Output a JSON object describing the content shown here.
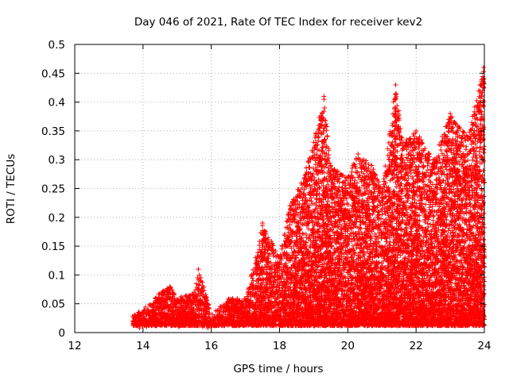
{
  "chart_data": {
    "type": "scatter",
    "title": "Day 046 of 2021, Rate Of TEC Index for receiver kev2",
    "xlabel": "GPS time / hours",
    "ylabel": "ROTI / TECUs",
    "xlim": [
      12,
      24
    ],
    "ylim": [
      0,
      0.5
    ],
    "xticks": [
      "12",
      "14",
      "16",
      "18",
      "20",
      "22",
      "24"
    ],
    "yticks": [
      "0",
      "0.05",
      "0.1",
      "0.15",
      "0.2",
      "0.25",
      "0.3",
      "0.35",
      "0.4",
      "0.45",
      "0.5"
    ],
    "grid": true,
    "marker": "+",
    "color": "#ff0000",
    "series": [
      {
        "name": "ROTI",
        "envelope": [
          {
            "x": 13.7,
            "ymax": 0.03
          },
          {
            "x": 14.0,
            "ymax": 0.04
          },
          {
            "x": 14.5,
            "ymax": 0.07
          },
          {
            "x": 14.8,
            "ymax": 0.08
          },
          {
            "x": 15.0,
            "ymax": 0.06
          },
          {
            "x": 15.5,
            "ymax": 0.07
          },
          {
            "x": 15.65,
            "ymax": 0.11
          },
          {
            "x": 16.0,
            "ymax": 0.03
          },
          {
            "x": 16.5,
            "ymax": 0.06
          },
          {
            "x": 17.0,
            "ymax": 0.06
          },
          {
            "x": 17.3,
            "ymax": 0.13
          },
          {
            "x": 17.5,
            "ymax": 0.19
          },
          {
            "x": 18.0,
            "ymax": 0.13
          },
          {
            "x": 18.3,
            "ymax": 0.22
          },
          {
            "x": 18.7,
            "ymax": 0.27
          },
          {
            "x": 19.0,
            "ymax": 0.33
          },
          {
            "x": 19.3,
            "ymax": 0.41
          },
          {
            "x": 19.5,
            "ymax": 0.29
          },
          {
            "x": 20.0,
            "ymax": 0.27
          },
          {
            "x": 20.3,
            "ymax": 0.31
          },
          {
            "x": 20.7,
            "ymax": 0.29
          },
          {
            "x": 21.0,
            "ymax": 0.25
          },
          {
            "x": 21.4,
            "ymax": 0.43
          },
          {
            "x": 21.6,
            "ymax": 0.33
          },
          {
            "x": 22.0,
            "ymax": 0.35
          },
          {
            "x": 22.5,
            "ymax": 0.3
          },
          {
            "x": 23.0,
            "ymax": 0.38
          },
          {
            "x": 23.5,
            "ymax": 0.34
          },
          {
            "x": 24.0,
            "ymax": 0.46
          }
        ],
        "values": [
          [
            13.72,
            0.012
          ],
          [
            13.75,
            0.025
          ],
          [
            13.8,
            0.018
          ],
          [
            13.85,
            0.03
          ],
          [
            13.9,
            0.008
          ],
          [
            13.95,
            0.02
          ],
          [
            14.0,
            0.035
          ],
          [
            14.05,
            0.015
          ],
          [
            14.1,
            0.01
          ],
          [
            14.15,
            0.04
          ],
          [
            14.2,
            0.022
          ],
          [
            14.25,
            0.012
          ],
          [
            14.3,
            0.03
          ],
          [
            14.35,
            0.05
          ],
          [
            14.4,
            0.018
          ],
          [
            14.45,
            0.06
          ],
          [
            14.5,
            0.025
          ],
          [
            14.55,
            0.065
          ],
          [
            14.6,
            0.015
          ],
          [
            14.65,
            0.03
          ],
          [
            14.7,
            0.045
          ],
          [
            14.75,
            0.02
          ],
          [
            14.8,
            0.078
          ],
          [
            14.85,
            0.012
          ],
          [
            14.9,
            0.035
          ],
          [
            14.95,
            0.05
          ],
          [
            15.0,
            0.02
          ],
          [
            15.05,
            0.01
          ],
          [
            15.1,
            0.03
          ],
          [
            15.15,
            0.06
          ],
          [
            15.2,
            0.015
          ],
          [
            15.3,
            0.025
          ],
          [
            15.35,
            0.045
          ],
          [
            15.4,
            0.012
          ],
          [
            15.5,
            0.07
          ],
          [
            15.55,
            0.03
          ],
          [
            15.6,
            0.095
          ],
          [
            15.62,
            0.11
          ],
          [
            15.65,
            0.1
          ],
          [
            15.7,
            0.02
          ],
          [
            15.75,
            0.01
          ],
          [
            15.8,
            0.015
          ],
          [
            15.9,
            0.008
          ],
          [
            16.0,
            0.02
          ],
          [
            16.1,
            0.012
          ],
          [
            16.2,
            0.03
          ],
          [
            16.3,
            0.018
          ],
          [
            16.4,
            0.04
          ],
          [
            16.5,
            0.058
          ],
          [
            16.55,
            0.025
          ],
          [
            16.6,
            0.05
          ],
          [
            16.7,
            0.015
          ],
          [
            16.8,
            0.03
          ],
          [
            16.9,
            0.02
          ],
          [
            17.0,
            0.045
          ],
          [
            17.1,
            0.028
          ],
          [
            17.2,
            0.08
          ],
          [
            17.3,
            0.13
          ],
          [
            17.35,
            0.06
          ],
          [
            17.4,
            0.1
          ],
          [
            17.5,
            0.19
          ],
          [
            17.52,
            0.17
          ],
          [
            17.6,
            0.05
          ],
          [
            17.7,
            0.09
          ],
          [
            17.8,
            0.03
          ],
          [
            17.9,
            0.07
          ],
          [
            18.0,
            0.12
          ],
          [
            18.1,
            0.05
          ],
          [
            18.2,
            0.15
          ],
          [
            18.25,
            0.08
          ],
          [
            18.3,
            0.22
          ],
          [
            18.35,
            0.1
          ],
          [
            18.4,
            0.04
          ],
          [
            18.5,
            0.13
          ],
          [
            18.6,
            0.2
          ],
          [
            18.65,
            0.07
          ],
          [
            18.7,
            0.26
          ],
          [
            18.75,
            0.15
          ],
          [
            18.8,
            0.05
          ],
          [
            18.85,
            0.18
          ],
          [
            18.9,
            0.24
          ],
          [
            18.95,
            0.11
          ],
          [
            19.0,
            0.33
          ],
          [
            19.05,
            0.2
          ],
          [
            19.1,
            0.08
          ],
          [
            19.15,
            0.28
          ],
          [
            19.2,
            0.15
          ],
          [
            19.25,
            0.38
          ],
          [
            19.3,
            0.41
          ],
          [
            19.32,
            0.39
          ],
          [
            19.35,
            0.25
          ],
          [
            19.4,
            0.34
          ],
          [
            19.45,
            0.12
          ],
          [
            19.5,
            0.29
          ],
          [
            19.55,
            0.06
          ],
          [
            19.6,
            0.2
          ],
          [
            19.65,
            0.27
          ],
          [
            19.7,
            0.1
          ],
          [
            19.75,
            0.22
          ],
          [
            19.8,
            0.15
          ],
          [
            19.85,
            0.04
          ],
          [
            19.9,
            0.18
          ],
          [
            19.95,
            0.25
          ],
          [
            20.0,
            0.12
          ],
          [
            20.05,
            0.2
          ],
          [
            20.1,
            0.07
          ],
          [
            20.15,
            0.27
          ],
          [
            20.2,
            0.16
          ],
          [
            20.25,
            0.3
          ],
          [
            20.3,
            0.31
          ],
          [
            20.35,
            0.09
          ],
          [
            20.4,
            0.22
          ],
          [
            20.45,
            0.14
          ],
          [
            20.5,
            0.05
          ],
          [
            20.55,
            0.2
          ],
          [
            20.6,
            0.24
          ],
          [
            20.65,
            0.11
          ],
          [
            20.7,
            0.29
          ],
          [
            20.75,
            0.18
          ],
          [
            20.8,
            0.06
          ],
          [
            20.85,
            0.15
          ],
          [
            20.9,
            0.21
          ],
          [
            20.95,
            0.03
          ],
          [
            21.0,
            0.25
          ],
          [
            21.05,
            0.1
          ],
          [
            21.1,
            0.18
          ],
          [
            21.15,
            0.05
          ],
          [
            21.2,
            0.23
          ],
          [
            21.25,
            0.13
          ],
          [
            21.3,
            0.02
          ],
          [
            21.35,
            0.32
          ],
          [
            21.4,
            0.43
          ],
          [
            21.42,
            0.41
          ],
          [
            21.45,
            0.2
          ],
          [
            21.5,
            0.35
          ],
          [
            21.55,
            0.15
          ],
          [
            21.6,
            0.3
          ],
          [
            21.65,
            0.08
          ],
          [
            21.7,
            0.25
          ],
          [
            21.75,
            0.12
          ],
          [
            21.8,
            0.28
          ],
          [
            21.85,
            0.18
          ],
          [
            21.9,
            0.1
          ],
          [
            21.95,
            0.32
          ],
          [
            22.0,
            0.35
          ],
          [
            22.05,
            0.15
          ],
          [
            22.1,
            0.22
          ],
          [
            22.15,
            0.08
          ],
          [
            22.2,
            0.27
          ],
          [
            22.25,
            0.12
          ],
          [
            22.3,
            0.2
          ],
          [
            22.35,
            0.06
          ],
          [
            22.4,
            0.17
          ],
          [
            22.45,
            0.25
          ],
          [
            22.5,
            0.3
          ],
          [
            22.55,
            0.1
          ],
          [
            22.6,
            0.19
          ],
          [
            22.65,
            0.05
          ],
          [
            22.7,
            0.23
          ],
          [
            22.75,
            0.14
          ],
          [
            22.8,
            0.08
          ],
          [
            22.85,
            0.21
          ],
          [
            22.9,
            0.27
          ],
          [
            22.95,
            0.12
          ],
          [
            23.0,
            0.38
          ],
          [
            23.05,
            0.2
          ],
          [
            23.1,
            0.15
          ],
          [
            23.15,
            0.3
          ],
          [
            23.2,
            0.35
          ],
          [
            23.25,
            0.09
          ],
          [
            23.3,
            0.22
          ],
          [
            23.35,
            0.18
          ],
          [
            23.4,
            0.05
          ],
          [
            23.45,
            0.26
          ],
          [
            23.5,
            0.34
          ],
          [
            23.55,
            0.12
          ],
          [
            23.6,
            0.2
          ],
          [
            23.65,
            0.07
          ],
          [
            23.7,
            0.25
          ],
          [
            23.75,
            0.15
          ],
          [
            23.8,
            0.03
          ],
          [
            23.85,
            0.18
          ],
          [
            23.9,
            0.1
          ],
          [
            23.95,
            0.42
          ],
          [
            23.98,
            0.46
          ]
        ]
      }
    ]
  }
}
